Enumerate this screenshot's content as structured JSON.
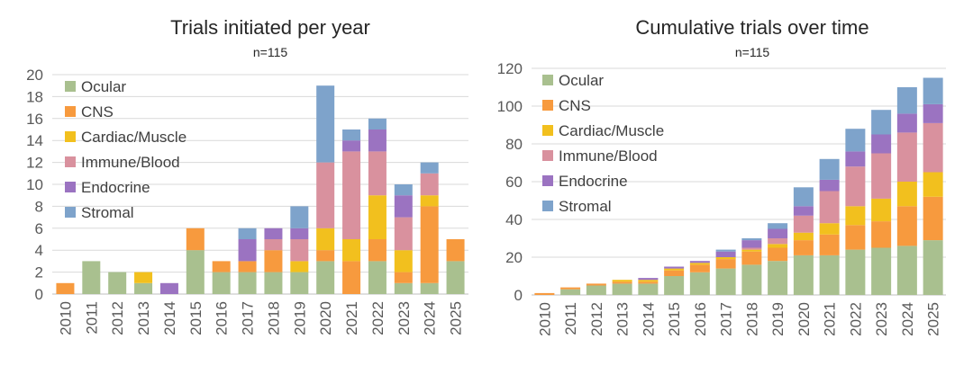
{
  "charts": [
    {
      "id": "annual",
      "title": "Trials initiated per year",
      "subtitle": "n=115",
      "type": "bar",
      "stacked": true,
      "ylim": [
        0,
        20
      ],
      "ytick_step": 2,
      "categories": [
        "2010",
        "2011",
        "2012",
        "2013",
        "2014",
        "2015",
        "2016",
        "2017",
        "2018",
        "2019",
        "2020",
        "2021",
        "2022",
        "2023",
        "2024",
        "2025"
      ],
      "series": [
        {
          "name": "Ocular",
          "color": "#a9c08f",
          "values": [
            0,
            3,
            2,
            1,
            0,
            4,
            2,
            2,
            2,
            2,
            3,
            0,
            3,
            1,
            1,
            3
          ]
        },
        {
          "name": "CNS",
          "color": "#f79a3e",
          "values": [
            1,
            0,
            0,
            0,
            0,
            2,
            1,
            1,
            2,
            0,
            1,
            3,
            2,
            1,
            7,
            2
          ]
        },
        {
          "name": "Cardiac/Muscle",
          "color": "#f2c01e",
          "values": [
            0,
            0,
            0,
            1,
            0,
            0,
            0,
            0,
            0,
            1,
            2,
            2,
            4,
            2,
            1,
            0
          ]
        },
        {
          "name": "Immune/Blood",
          "color": "#d9919e",
          "values": [
            0,
            0,
            0,
            0,
            0,
            0,
            0,
            0,
            1,
            2,
            6,
            8,
            4,
            3,
            2,
            0
          ]
        },
        {
          "name": "Endocrine",
          "color": "#9b73c1",
          "values": [
            0,
            0,
            0,
            0,
            1,
            0,
            0,
            2,
            1,
            1,
            0,
            1,
            2,
            2,
            0,
            0
          ]
        },
        {
          "name": "Stromal",
          "color": "#7ea3cb",
          "values": [
            0,
            0,
            0,
            0,
            0,
            0,
            0,
            1,
            0,
            2,
            7,
            1,
            1,
            1,
            1,
            0
          ]
        }
      ]
    },
    {
      "id": "cumulative",
      "title": "Cumulative trials over time",
      "subtitle": "n=115",
      "type": "bar",
      "stacked": true,
      "ylim": [
        0,
        120
      ],
      "ytick_step": 20,
      "categories": [
        "2010",
        "2011",
        "2012",
        "2013",
        "2014",
        "2015",
        "2016",
        "2017",
        "2018",
        "2019",
        "2020",
        "2021",
        "2022",
        "2023",
        "2024",
        "2025"
      ],
      "series": [
        {
          "name": "Ocular",
          "color": "#a9c08f",
          "values": [
            0,
            3,
            5,
            6,
            6,
            10,
            12,
            14,
            16,
            18,
            21,
            21,
            24,
            25,
            26,
            29
          ]
        },
        {
          "name": "CNS",
          "color": "#f79a3e",
          "values": [
            1,
            1,
            1,
            1,
            1,
            3,
            4,
            5,
            7,
            7,
            8,
            11,
            13,
            14,
            21,
            23
          ]
        },
        {
          "name": "Cardiac/Muscle",
          "color": "#f2c01e",
          "values": [
            0,
            0,
            0,
            1,
            1,
            1,
            1,
            1,
            1,
            2,
            4,
            6,
            10,
            12,
            13,
            13
          ]
        },
        {
          "name": "Immune/Blood",
          "color": "#d9919e",
          "values": [
            0,
            0,
            0,
            0,
            0,
            0,
            0,
            0,
            1,
            3,
            9,
            17,
            21,
            24,
            26,
            26
          ]
        },
        {
          "name": "Endocrine",
          "color": "#9b73c1",
          "values": [
            0,
            0,
            0,
            0,
            1,
            1,
            1,
            3,
            4,
            5,
            5,
            6,
            8,
            10,
            10,
            10
          ]
        },
        {
          "name": "Stromal",
          "color": "#7ea3cb",
          "values": [
            0,
            0,
            0,
            0,
            0,
            0,
            0,
            1,
            1,
            3,
            10,
            11,
            12,
            13,
            14,
            14
          ]
        }
      ]
    }
  ]
}
